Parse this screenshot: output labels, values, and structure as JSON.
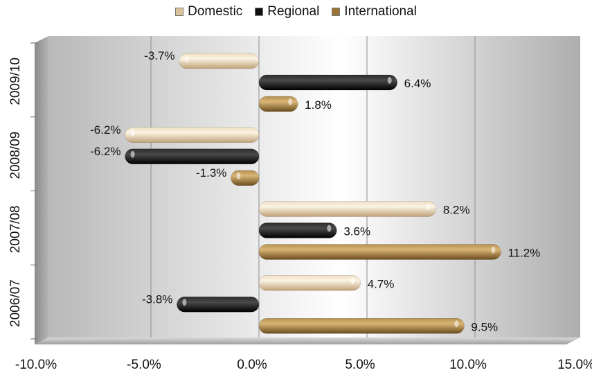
{
  "chart_data": {
    "type": "bar",
    "orientation": "horizontal",
    "categories": [
      "2006/07",
      "2007/08",
      "2008/09",
      "2009/10"
    ],
    "series": [
      {
        "name": "Domestic",
        "values": [
          4.7,
          8.2,
          -6.2,
          -3.7
        ],
        "color": "#d9c29a"
      },
      {
        "name": "Regional",
        "values": [
          -3.8,
          3.6,
          -6.2,
          6.4
        ],
        "color": "#111111"
      },
      {
        "name": "International",
        "values": [
          9.5,
          11.2,
          -1.3,
          1.8
        ],
        "color": "#9a7436"
      }
    ],
    "data_labels": {
      "Domestic": [
        "4.7%",
        "8.2%",
        "-6.2%",
        "-3.7%"
      ],
      "Regional": [
        "-3.8%",
        "3.6%",
        "-6.2%",
        "6.4%"
      ],
      "International": [
        "9.5%",
        "11.2%",
        "-1.3%",
        "1.8%"
      ]
    },
    "xticks": [
      "-10.0%",
      "-5.0%",
      "0.0%",
      "5.0%",
      "10.0%",
      "15.0%"
    ],
    "xlim": [
      -10,
      15
    ],
    "legend_position": "top",
    "grid": true,
    "style": "3d cylinder bars"
  }
}
